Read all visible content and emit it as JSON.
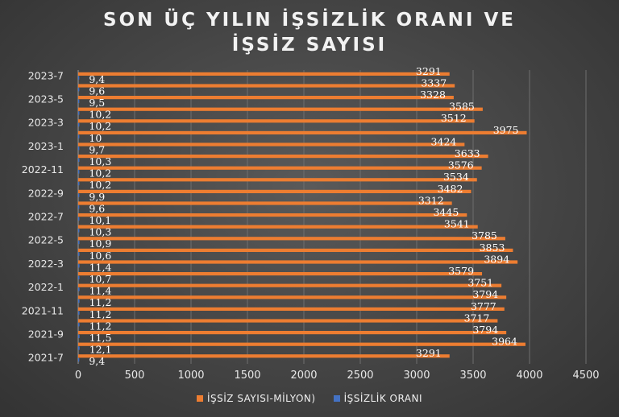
{
  "chart_data": {
    "type": "bar",
    "orientation": "horizontal",
    "title_lines": [
      "SON ÜÇ YILIN İŞSİZLİK ORANI VE",
      "İŞSİZ SAYISI"
    ],
    "categories": [
      "2021-7",
      "2021-8",
      "2021-9",
      "2021-10",
      "2021-11",
      "2021-12",
      "2022-1",
      "2022-2",
      "2022-3",
      "2022-4",
      "2022-5",
      "2022-6",
      "2022-7",
      "2022-8",
      "2022-9",
      "2022-10",
      "2022-11",
      "2022-12",
      "2023-1",
      "2023-2",
      "2023-3",
      "2023-4",
      "2023-5",
      "2023-6",
      "2023-7"
    ],
    "visible_category_labels": [
      "2021-7",
      "2021-9",
      "2021-11",
      "2022-1",
      "2022-3",
      "2022-5",
      "2022-7",
      "2022-9",
      "2022-11",
      "2023-1",
      "2023-3",
      "2023-5",
      "2023-7"
    ],
    "series": [
      {
        "name": "İŞSİZ SAYISI-MİLYON)",
        "color": "#ED7D31",
        "values": [
          3291,
          3964,
          3794,
          3717,
          3777,
          3794,
          3751,
          3579,
          3894,
          3853,
          3785,
          3541,
          3445,
          3312,
          3482,
          3534,
          3576,
          3633,
          3424,
          3975,
          3512,
          3585,
          3328,
          3337,
          3291
        ]
      },
      {
        "name": "İŞSİZLİK ORANI",
        "color": "#4472C4",
        "values": [
          9.4,
          12.1,
          11.5,
          11.2,
          11.2,
          11.2,
          11.4,
          10.7,
          11.4,
          10.6,
          10.9,
          10.3,
          10.1,
          9.6,
          9.9,
          10.2,
          10.2,
          10.3,
          9.7,
          10,
          10.2,
          10.2,
          9.5,
          9.6,
          9.4
        ]
      }
    ],
    "value_label_strings": {
      "İŞSİZLİK ORANI": [
        "9,4",
        "12,1",
        "11,5",
        "11,2",
        "11,2",
        "11,2",
        "11,4",
        "10,7",
        "11,4",
        "10,6",
        "10,9",
        "10,3",
        "10,1",
        "9,6",
        "9,9",
        "10,2",
        "10,2",
        "10,3",
        "9,7",
        "10",
        "10,2",
        "10,2",
        "9,5",
        "9,6",
        "9,4"
      ]
    },
    "xlim": [
      0,
      4500
    ],
    "xticks": [
      0,
      500,
      1000,
      1500,
      2000,
      2500,
      3000,
      3500,
      4000,
      4500
    ],
    "grid": true,
    "legend_position": "bottom"
  }
}
